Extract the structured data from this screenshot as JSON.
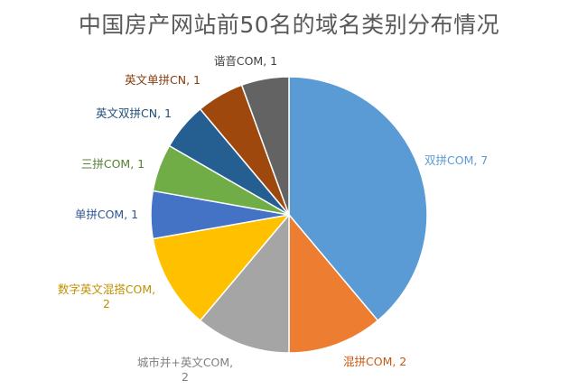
{
  "chart_data": {
    "type": "pie",
    "title": "中国房产网站前50名的域名类别分布情况",
    "start_angle_deg": 0,
    "direction": "clockwise",
    "slices": [
      {
        "label": "双拼COM",
        "value": 7,
        "label_text": [
          "双拼COM, 7"
        ],
        "color": "#5B9BD5"
      },
      {
        "label": "混拼COM",
        "value": 2,
        "label_text": [
          "混拼COM, 2"
        ],
        "color": "#ED7D31"
      },
      {
        "label": "城市井+英文COM",
        "value": 2,
        "label_text": [
          "城市并+英文COM,",
          "2"
        ],
        "color": "#A5A5A5"
      },
      {
        "label": "数字英文混搭COM",
        "value": 2,
        "label_text": [
          "数字英文混搭COM,",
          "2"
        ],
        "color": "#FFC000"
      },
      {
        "label": "单拼COM",
        "value": 1,
        "label_text": [
          "单拼COM, 1"
        ],
        "color": "#4472C4"
      },
      {
        "label": "三拼COM",
        "value": 1,
        "label_text": [
          "三拼COM, 1"
        ],
        "color": "#70AD47"
      },
      {
        "label": "英文双拼CN",
        "value": 1,
        "label_text": [
          "英文双拼CN, 1"
        ],
        "color": "#255E91"
      },
      {
        "label": "英文单拼CN",
        "value": 1,
        "label_text": [
          "英文单拼CN, 1"
        ],
        "color": "#9E480E"
      },
      {
        "label": "谐音COM",
        "value": 1,
        "label_text": [
          "谐音COM, 1"
        ],
        "color": "#636363"
      }
    ],
    "label_colors": {
      "双拼COM": "#5B9BD5",
      "混拼COM": "#C55A11",
      "城市井+英文COM": "#7F7F7F",
      "数字英文混搭COM": "#BF9000",
      "单拼COM": "#2F5597",
      "三拼COM": "#548235",
      "英文双拼CN": "#1F4E79",
      "英文单拼CN": "#843C0C",
      "谐音COM": "#404040"
    }
  }
}
